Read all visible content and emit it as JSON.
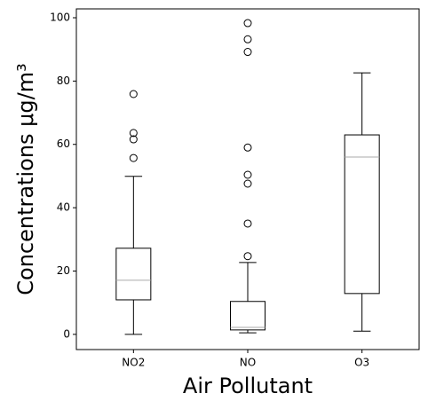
{
  "chart_data": {
    "type": "box",
    "xlabel": "Air Pollutant",
    "ylabel": "Concentrations μg/m³",
    "categories": [
      "NO2",
      "NO",
      "O3"
    ],
    "boxes": [
      {
        "whislo": 0,
        "q1": 10.9,
        "med": 17.1,
        "q3": 27.2,
        "whishi": 49.9,
        "fliers": [
          75.9,
          63.6,
          61.6,
          55.7
        ]
      },
      {
        "whislo": 0.5,
        "q1": 1.4,
        "med": 2.2,
        "q3": 10.4,
        "whishi": 22.7,
        "fliers": [
          24.7,
          35,
          47.6,
          50.4,
          59,
          89.2,
          93.2,
          98.3
        ]
      },
      {
        "whislo": 1,
        "q1": 12.9,
        "med": 56,
        "q3": 63,
        "whishi": 82.6,
        "fliers": []
      }
    ],
    "color": "#000000",
    "median_color": "#aaaaaa",
    "ylim": [
      -4.8,
      102.8
    ],
    "yticks": [
      0,
      20,
      40,
      60,
      80,
      100
    ]
  }
}
